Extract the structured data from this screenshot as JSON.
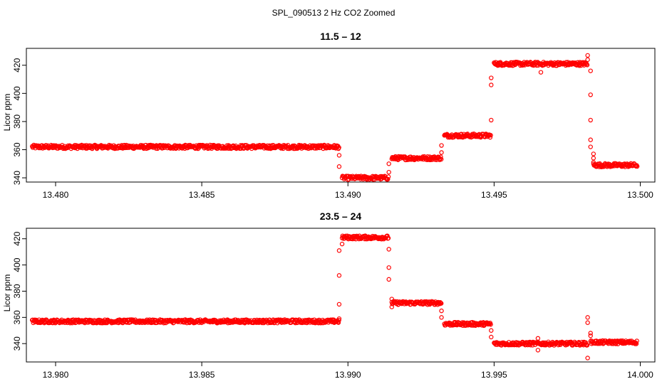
{
  "figure": {
    "title": "SPL_090513  2 Hz CO2 Zoomed"
  },
  "chart_data": [
    {
      "type": "scatter",
      "title": "11.5 – 12",
      "xlabel": "",
      "ylabel": "Licor ppm",
      "xlim": [
        13.479,
        13.5005
      ],
      "ylim": [
        337,
        432
      ],
      "xticks": [
        13.48,
        13.485,
        13.49,
        13.495,
        13.5
      ],
      "xtick_labels": [
        "13.480",
        "13.485",
        "13.490",
        "13.495",
        "13.500"
      ],
      "yticks": [
        340,
        360,
        380,
        400,
        420
      ],
      "ytick_labels": [
        "340",
        "360",
        "380",
        "400",
        "420"
      ],
      "grid": false,
      "marker": "open-circle",
      "color": "#ff0000",
      "segments": [
        {
          "x_start": 13.4792,
          "x_end": 13.4897,
          "y": 362
        },
        {
          "x_start": 13.4898,
          "x_end": 13.4914,
          "y": 340
        },
        {
          "x_start": 13.4915,
          "x_end": 13.4932,
          "y": 354
        },
        {
          "x_start": 13.4933,
          "x_end": 13.4949,
          "y": 370
        },
        {
          "x_start": 13.495,
          "x_end": 13.4982,
          "y": 421
        },
        {
          "x_start": 13.4984,
          "x_end": 13.4999,
          "y": 349
        }
      ],
      "points": [
        {
          "x": 13.4897,
          "y": 356
        },
        {
          "x": 13.4897,
          "y": 348
        },
        {
          "x": 13.4914,
          "y": 344
        },
        {
          "x": 13.4914,
          "y": 350
        },
        {
          "x": 13.4932,
          "y": 358
        },
        {
          "x": 13.4932,
          "y": 363
        },
        {
          "x": 13.4949,
          "y": 381
        },
        {
          "x": 13.4949,
          "y": 406
        },
        {
          "x": 13.4949,
          "y": 411
        },
        {
          "x": 13.4966,
          "y": 415
        },
        {
          "x": 13.4982,
          "y": 427
        },
        {
          "x": 13.4982,
          "y": 424
        },
        {
          "x": 13.4983,
          "y": 416
        },
        {
          "x": 13.4983,
          "y": 399
        },
        {
          "x": 13.4983,
          "y": 381
        },
        {
          "x": 13.4983,
          "y": 367
        },
        {
          "x": 13.4983,
          "y": 362
        },
        {
          "x": 13.4984,
          "y": 357
        },
        {
          "x": 13.4984,
          "y": 354
        },
        {
          "x": 13.4984,
          "y": 351
        }
      ]
    },
    {
      "type": "scatter",
      "title": "23.5 – 24",
      "xlabel": "",
      "ylabel": "Licor ppm",
      "xlim": [
        13.979,
        14.0005
      ],
      "ylim": [
        326,
        428
      ],
      "xticks": [
        13.98,
        13.985,
        13.99,
        13.995,
        14.0
      ],
      "xtick_labels": [
        "13.980",
        "13.985",
        "13.990",
        "13.995",
        "14.000"
      ],
      "yticks": [
        340,
        360,
        380,
        400,
        420
      ],
      "ytick_labels": [
        "340",
        "360",
        "380",
        "400",
        "420"
      ],
      "grid": false,
      "marker": "open-circle",
      "color": "#ff0000",
      "segments": [
        {
          "x_start": 13.9792,
          "x_end": 13.9897,
          "y": 357
        },
        {
          "x_start": 13.9898,
          "x_end": 13.9914,
          "y": 421
        },
        {
          "x_start": 13.9915,
          "x_end": 13.9932,
          "y": 371
        },
        {
          "x_start": 13.9933,
          "x_end": 13.9949,
          "y": 355
        },
        {
          "x_start": 13.995,
          "x_end": 13.9982,
          "y": 340
        },
        {
          "x_start": 13.9983,
          "x_end": 13.9999,
          "y": 341
        }
      ],
      "points": [
        {
          "x": 13.9897,
          "y": 359
        },
        {
          "x": 13.9897,
          "y": 370
        },
        {
          "x": 13.9897,
          "y": 392
        },
        {
          "x": 13.9897,
          "y": 411
        },
        {
          "x": 13.9898,
          "y": 416
        },
        {
          "x": 13.9914,
          "y": 412
        },
        {
          "x": 13.9914,
          "y": 398
        },
        {
          "x": 13.9914,
          "y": 389
        },
        {
          "x": 13.9915,
          "y": 374
        },
        {
          "x": 13.9915,
          "y": 368
        },
        {
          "x": 13.9932,
          "y": 365
        },
        {
          "x": 13.9932,
          "y": 360
        },
        {
          "x": 13.9949,
          "y": 350
        },
        {
          "x": 13.9949,
          "y": 345
        },
        {
          "x": 13.9965,
          "y": 344
        },
        {
          "x": 13.9965,
          "y": 335
        },
        {
          "x": 13.9982,
          "y": 360
        },
        {
          "x": 13.9982,
          "y": 356
        },
        {
          "x": 13.9983,
          "y": 348
        },
        {
          "x": 13.9983,
          "y": 346
        },
        {
          "x": 13.9982,
          "y": 329
        }
      ]
    }
  ]
}
